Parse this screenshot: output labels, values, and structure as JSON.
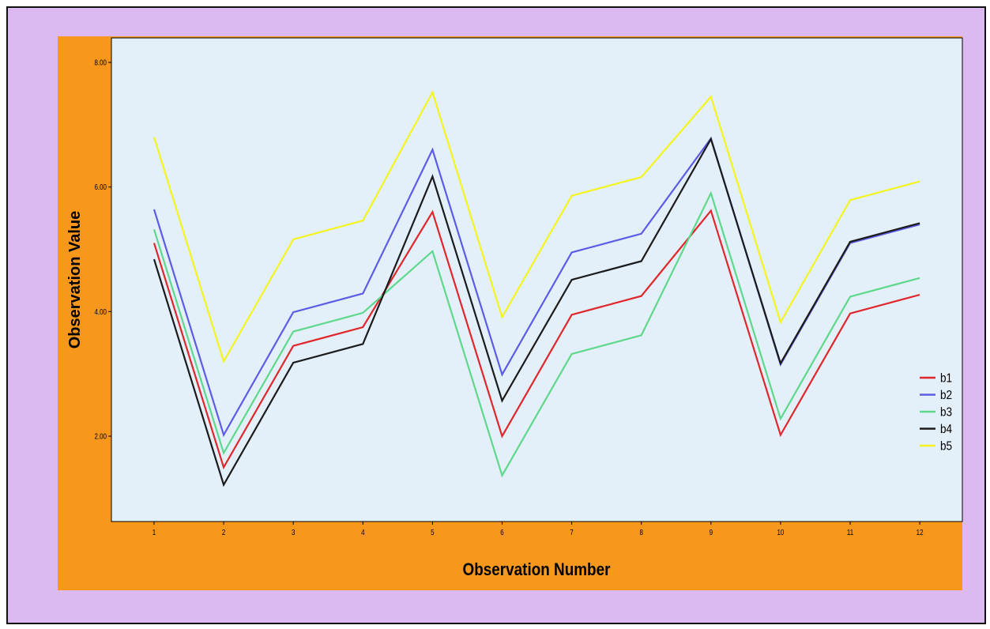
{
  "chart_data": {
    "type": "line",
    "xlabel": "Observation Number",
    "ylabel": "Observation Value",
    "categories": [
      "1",
      "2",
      "3",
      "4",
      "5",
      "6",
      "7",
      "8",
      "9",
      "10",
      "11",
      "12"
    ],
    "y_ticks": [
      "2.00",
      "4.00",
      "6.00",
      "8.00"
    ],
    "ylim": [
      0.7,
      8.1
    ],
    "grid": false,
    "legend_position": "bottom-right",
    "series": [
      {
        "name": "b1",
        "color": "#e0272b",
        "values": [
          5.1,
          1.5,
          3.45,
          3.75,
          5.6,
          2.0,
          3.95,
          4.25,
          5.62,
          2.02,
          3.97,
          4.27
        ]
      },
      {
        "name": "b2",
        "color": "#5c5ce6",
        "values": [
          5.64,
          2.02,
          3.99,
          4.29,
          6.6,
          2.99,
          4.95,
          5.25,
          6.78,
          3.15,
          5.1,
          5.4
        ]
      },
      {
        "name": "b3",
        "color": "#5ed88a",
        "values": [
          5.32,
          1.73,
          3.68,
          3.98,
          4.97,
          1.37,
          3.32,
          3.62,
          5.9,
          2.28,
          4.24,
          4.54
        ]
      },
      {
        "name": "b4",
        "color": "#1b1b1b",
        "values": [
          4.84,
          1.22,
          3.18,
          3.48,
          6.17,
          2.57,
          4.51,
          4.81,
          6.77,
          3.17,
          5.12,
          5.42
        ]
      },
      {
        "name": "b5",
        "color": "#f5f51e",
        "values": [
          6.8,
          3.2,
          5.16,
          5.46,
          7.52,
          3.91,
          5.86,
          6.16,
          7.45,
          3.83,
          5.79,
          6.09
        ]
      }
    ]
  },
  "colors": {
    "outer_background": "#dcb9f0",
    "frame_background": "#f7981d",
    "plot_background": "#e3eff9"
  }
}
